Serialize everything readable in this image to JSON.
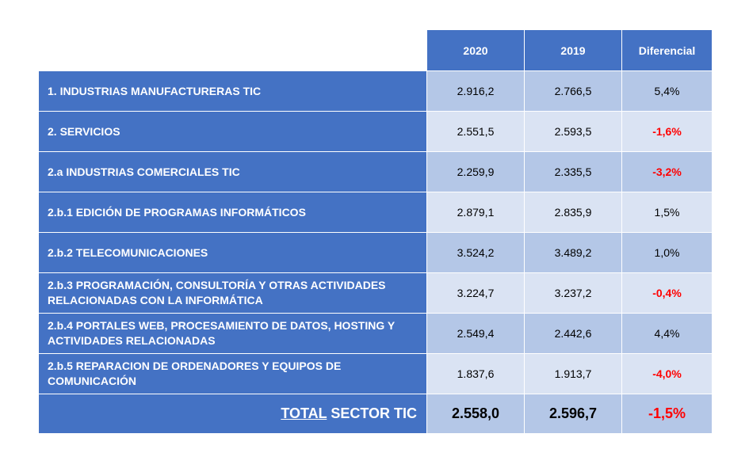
{
  "header": {
    "col1": "2020",
    "col2": "2019",
    "col3": "Diferencial"
  },
  "rows": [
    {
      "label": "1. INDUSTRIAS MANUFACTURERAS TIC",
      "v2020": "2.916,2",
      "v2019": "2.766,5",
      "diff": "5,4%",
      "negative": false
    },
    {
      "label": "2. SERVICIOS",
      "v2020": "2.551,5",
      "v2019": "2.593,5",
      "diff": "-1,6%",
      "negative": true
    },
    {
      "label": "2.a INDUSTRIAS COMERCIALES TIC",
      "v2020": "2.259,9",
      "v2019": "2.335,5",
      "diff": "-3,2%",
      "negative": true
    },
    {
      "label": "2.b.1 EDICIÓN DE PROGRAMAS INFORMÁTICOS",
      "v2020": "2.879,1",
      "v2019": "2.835,9",
      "diff": "1,5%",
      "negative": false
    },
    {
      "label": "2.b.2 TELECOMUNICACIONES",
      "v2020": "3.524,2",
      "v2019": "3.489,2",
      "diff": "1,0%",
      "negative": false
    },
    {
      "label": "2.b.3 PROGRAMACIÓN, CONSULTORÍA Y OTRAS ACTIVIDADES RELACIONADAS CON LA INFORMÁTICA",
      "v2020": "3.224,7",
      "v2019": "3.237,2",
      "diff": "-0,4%",
      "negative": true
    },
    {
      "label": "2.b.4 PORTALES WEB, PROCESAMIENTO DE DATOS, HOSTING Y ACTIVIDADES RELACIONADAS",
      "v2020": "2.549,4",
      "v2019": "2.442,6",
      "diff": "4,4%",
      "negative": false
    },
    {
      "label": "2.b.5 REPARACION DE ORDENADORES Y EQUIPOS DE COMUNICACIÓN",
      "v2020": "1.837,6",
      "v2019": "1.913,7",
      "diff": "-4,0%",
      "negative": true
    }
  ],
  "total": {
    "label_underlined": "TOTAL",
    "label_rest": " SECTOR TIC",
    "v2020": "2.558,0",
    "v2019": "2.596,7",
    "diff": "-1,5%",
    "negative": true
  },
  "colors": {
    "header_blue": "#4472c4",
    "cell_light": "#b4c7e7",
    "cell_lighter": "#dae3f3",
    "negative_red": "#ff0000"
  }
}
